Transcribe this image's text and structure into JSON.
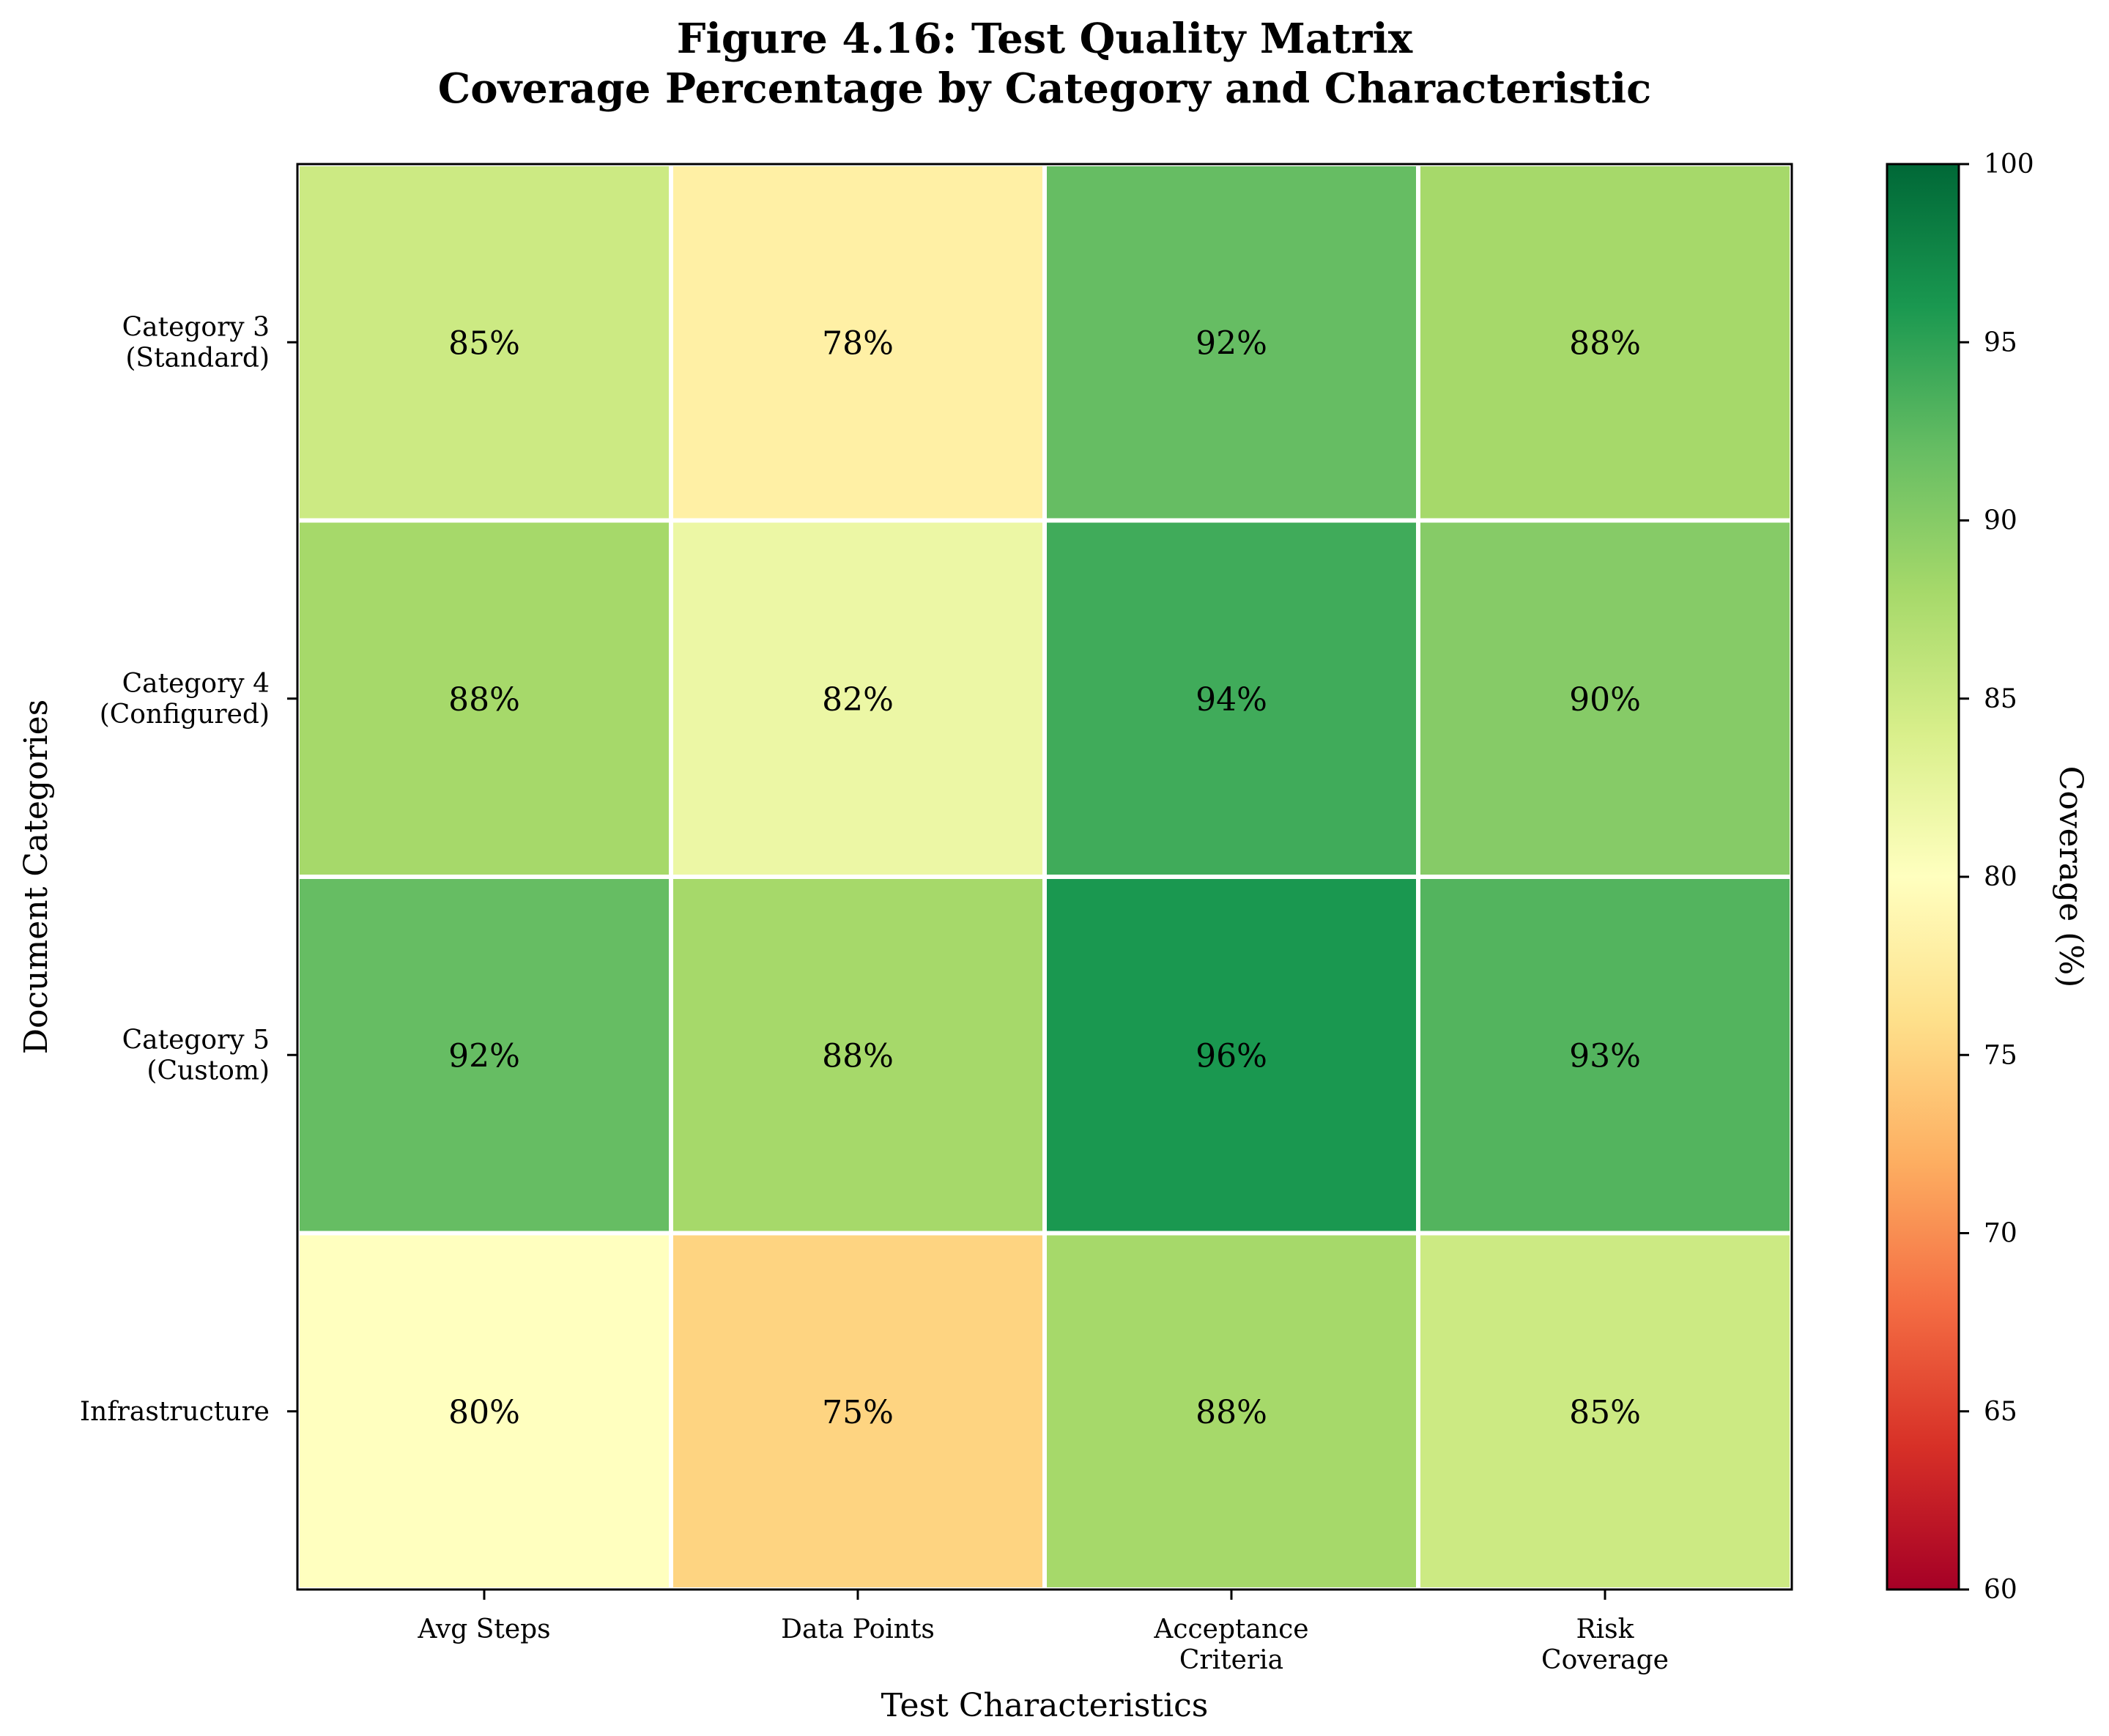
{
  "chart_data": {
    "type": "heatmap",
    "title_line1": "Figure 4.16: Test Quality Matrix",
    "title_line2": "Coverage Percentage by Category and Characteristic",
    "xlabel": "Test Characteristics",
    "ylabel": "Document Categories",
    "x_categories": [
      [
        "Avg Steps"
      ],
      [
        "Data Points"
      ],
      [
        "Acceptance",
        "Criteria"
      ],
      [
        "Risk",
        "Coverage"
      ]
    ],
    "y_categories": [
      [
        "Category 3",
        "(Standard)"
      ],
      [
        "Category 4",
        "(Configured)"
      ],
      [
        "Category 5",
        "(Custom)"
      ],
      [
        "Infrastructure"
      ]
    ],
    "values": [
      [
        85,
        78,
        92,
        88
      ],
      [
        88,
        82,
        94,
        90
      ],
      [
        92,
        88,
        96,
        93
      ],
      [
        80,
        75,
        88,
        85
      ]
    ],
    "value_suffix": "%",
    "colorbar": {
      "label": "Coverage (%)",
      "min": 60,
      "max": 100,
      "ticks": [
        "60",
        "65",
        "70",
        "75",
        "80",
        "85",
        "90",
        "95",
        "100"
      ],
      "colormap": "RdYlGn"
    },
    "grid": false,
    "cell_border_color": "#ffffff"
  }
}
